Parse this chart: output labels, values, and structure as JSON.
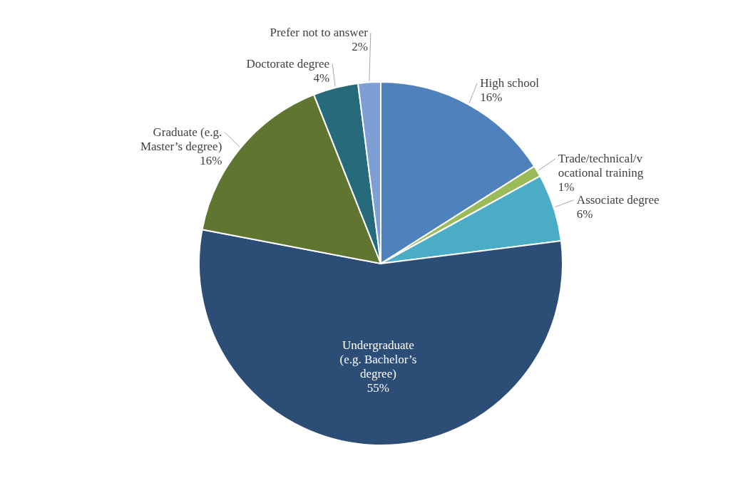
{
  "chart_data": {
    "type": "pie",
    "categories": [
      "High school",
      "Trade/technical/vocational training",
      "Associate degree",
      "Undergraduate (e.g. Bachelor’s degree)",
      "Graduate (e.g. Master’s degree)",
      "Doctorate degree",
      "Prefer not to answer"
    ],
    "values": [
      16,
      1,
      6,
      55,
      16,
      4,
      2
    ],
    "value_labels": [
      "16%",
      "1%",
      "6%",
      "55%",
      "16%",
      "4%",
      "2%"
    ],
    "colors": [
      "#4f81bd",
      "#9bbb59",
      "#4bacc6",
      "#2c4d75",
      "#5f7530",
      "#276a7c",
      "#7d9fd3"
    ]
  }
}
